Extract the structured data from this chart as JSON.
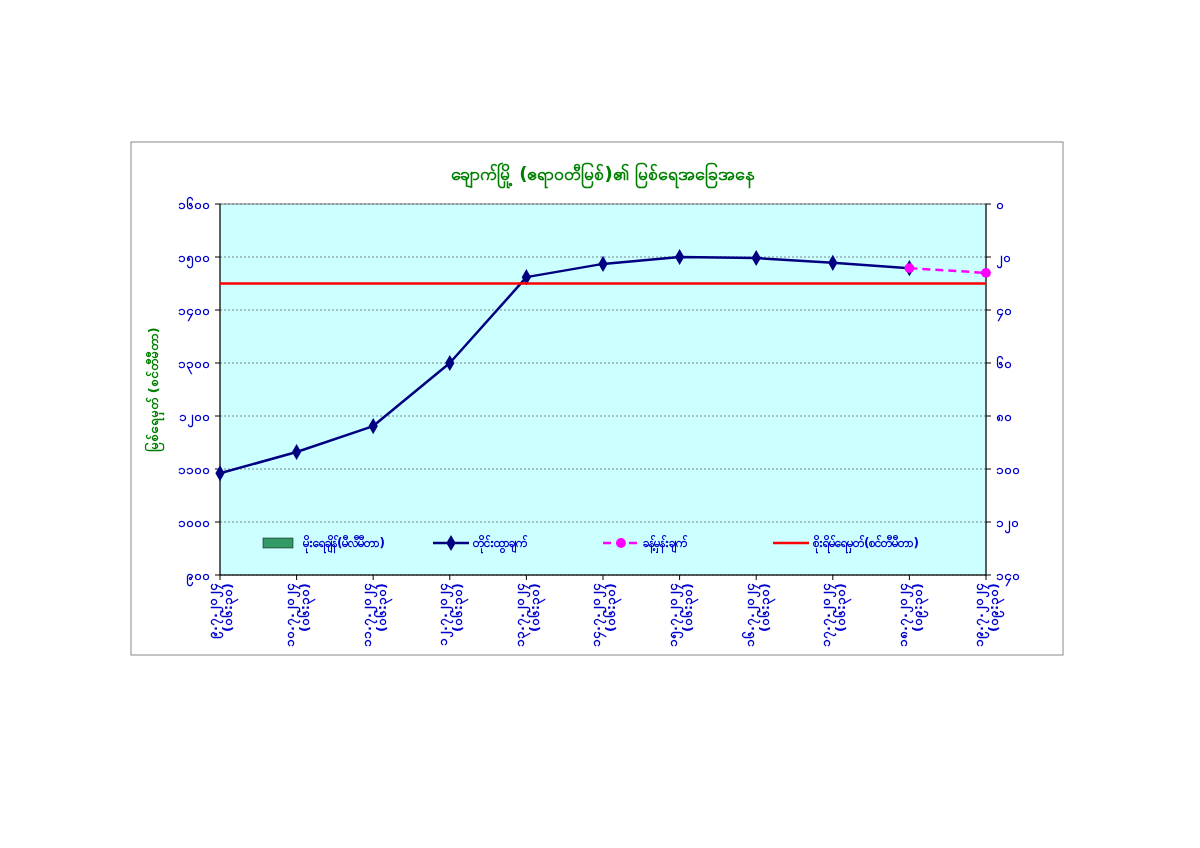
{
  "chart_data": {
    "type": "line",
    "title": "ချောက်မြို့ (ဧရာဝတီမြစ်)၏ မြစ်ရေအခြေအနေ",
    "ylabel": "မြစ်ရေမှတ် (စင်တီမီတာ)",
    "categories": [
      "၉.၇.၂၀၂၄\n(၀၆:၃၀)",
      "၁၀.၇.၂၀၂၄\n(၀၆:၃၀)",
      "၁၁.၇.၂၀၂၄\n(၀၆:၃၀)",
      "၁၂.၇.၂၀၂၄\n(၀၆:၃၀)",
      "၁၃.၇.၂၀၂၄\n(၀၆:၃၀)",
      "၁၄.၇.၂၀၂၄\n(၀၆:၃၀)",
      "၁၅.၇.၂၀၂၄\n(၀၆:၃၀)",
      "၁၆.၇.၂၀၂၄\n(၀၆:၃၀)",
      "၁၇.၇.၂၀၂၄\n(၀၆:၃၀)",
      "၁၈.၇.၂၀၂၄\n(၀၉:၃၀)",
      "၁၉.၇.၂၀၂၄\n(၀၉:၃၀)"
    ],
    "series": [
      {
        "name": "မိုးရေချိန်(မီလီမီတာ)",
        "type": "bar",
        "color": "#339966",
        "values": [
          null,
          null,
          null,
          null,
          null,
          null,
          null,
          null,
          null,
          null,
          null
        ]
      },
      {
        "name": "တိုင်းထွာချက်",
        "color": "#000080",
        "marker": "diamond",
        "line_style": "solid",
        "values": [
          1092,
          1132,
          1181,
          1300,
          1462,
          1487,
          1500,
          1498,
          1489,
          1479,
          null
        ]
      },
      {
        "name": "ခန့်မှန်းချက်",
        "color": "#ff00ff",
        "marker": "circle",
        "line_style": "dashed",
        "values": [
          null,
          null,
          null,
          null,
          null,
          null,
          null,
          null,
          null,
          1479,
          1470
        ]
      }
    ],
    "ref_lines": [
      {
        "axis": "y",
        "value": 1450,
        "label": "စိုးရိမ်ရေမှတ်(စင်တီမီတာ)",
        "color": "#ff0000"
      }
    ],
    "ylim": [
      900,
      1600
    ],
    "yticks": [
      {
        "value": 900,
        "label": "၉၀၀"
      },
      {
        "value": 1000,
        "label": "၁၀၀၀"
      },
      {
        "value": 1100,
        "label": "၁၁၀၀"
      },
      {
        "value": 1200,
        "label": "၁၂၀၀"
      },
      {
        "value": 1300,
        "label": "၁၃၀၀"
      },
      {
        "value": 1400,
        "label": "၁၄၀၀"
      },
      {
        "value": 1500,
        "label": "၁၅၀၀"
      },
      {
        "value": 1600,
        "label": "၁၆၀၀"
      }
    ],
    "y2lim": [
      140,
      0
    ],
    "y2ticks": [
      {
        "value": 0,
        "label": "၀"
      },
      {
        "value": 20,
        "label": "၂၀"
      },
      {
        "value": 40,
        "label": "၄၀"
      },
      {
        "value": 60,
        "label": "၆၀"
      },
      {
        "value": 80,
        "label": "၈၀"
      },
      {
        "value": 100,
        "label": "၁၀၀"
      },
      {
        "value": 120,
        "label": "၁၂၀"
      },
      {
        "value": 140,
        "label": "၁၄၀"
      }
    ],
    "grid": "y",
    "legend": "bottom"
  }
}
